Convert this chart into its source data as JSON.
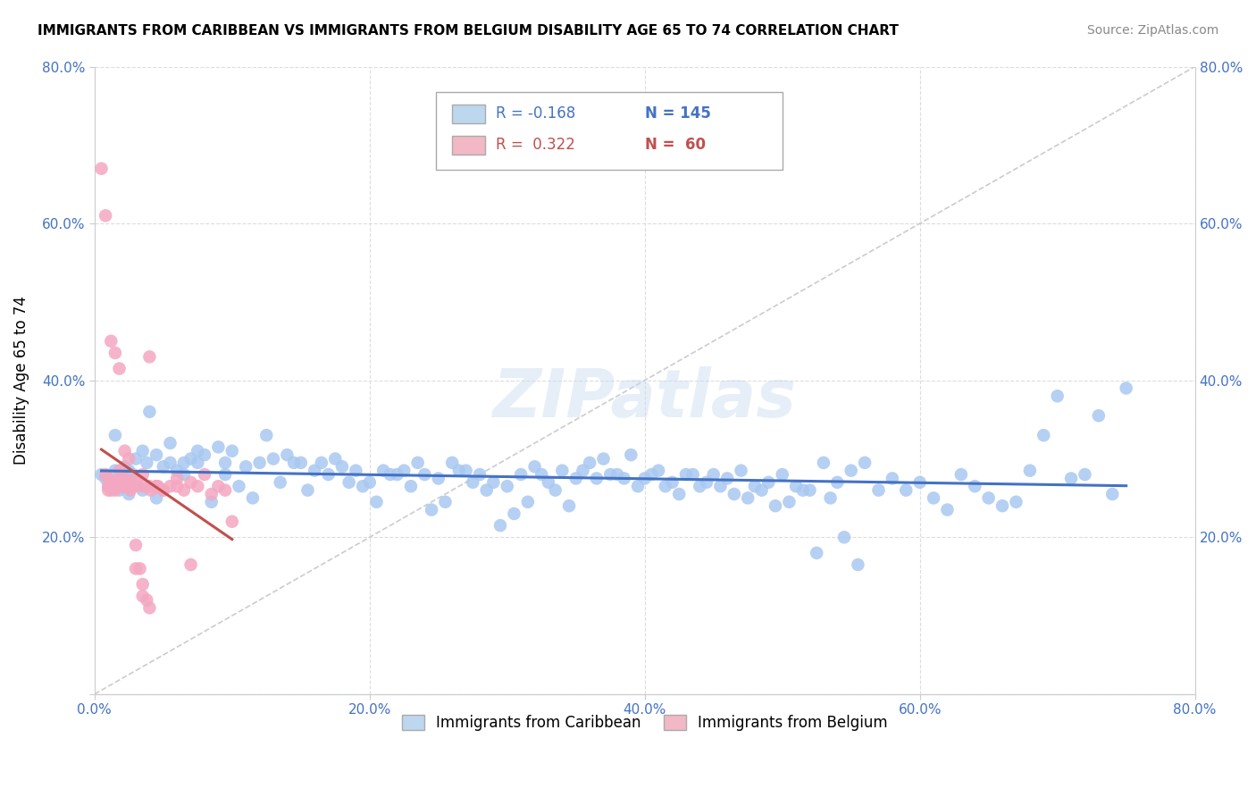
{
  "title": "IMMIGRANTS FROM CARIBBEAN VS IMMIGRANTS FROM BELGIUM DISABILITY AGE 65 TO 74 CORRELATION CHART",
  "source": "Source: ZipAtlas.com",
  "ylabel": "Disability Age 65 to 74",
  "xlim": [
    0.0,
    0.8
  ],
  "ylim": [
    0.0,
    0.8
  ],
  "x_ticks": [
    0.0,
    0.2,
    0.4,
    0.6,
    0.8
  ],
  "y_ticks": [
    0.0,
    0.2,
    0.4,
    0.6,
    0.8
  ],
  "caribbean_R": -0.168,
  "caribbean_N": 145,
  "belgium_R": 0.322,
  "belgium_N": 60,
  "caribbean_color": "#a8c8f0",
  "belgium_color": "#f4a7c0",
  "caribbean_line_color": "#4472c4",
  "belgium_line_color": "#c0504d",
  "legend_box_color_caribbean": "#bdd7ee",
  "legend_box_color_belgium": "#f2b8c6",
  "watermark": "ZIPatlas",
  "caribbean_scatter_x": [
    0.005,
    0.008,
    0.01,
    0.012,
    0.015,
    0.018,
    0.02,
    0.022,
    0.025,
    0.028,
    0.03,
    0.035,
    0.038,
    0.04,
    0.045,
    0.05,
    0.055,
    0.06,
    0.065,
    0.07,
    0.075,
    0.08,
    0.09,
    0.095,
    0.1,
    0.11,
    0.12,
    0.13,
    0.14,
    0.15,
    0.16,
    0.17,
    0.18,
    0.19,
    0.2,
    0.21,
    0.22,
    0.23,
    0.24,
    0.25,
    0.26,
    0.27,
    0.28,
    0.29,
    0.3,
    0.31,
    0.32,
    0.33,
    0.34,
    0.35,
    0.36,
    0.37,
    0.38,
    0.39,
    0.4,
    0.41,
    0.42,
    0.43,
    0.44,
    0.45,
    0.46,
    0.47,
    0.48,
    0.49,
    0.5,
    0.51,
    0.52,
    0.53,
    0.54,
    0.55,
    0.56,
    0.57,
    0.58,
    0.59,
    0.6,
    0.61,
    0.62,
    0.63,
    0.64,
    0.65,
    0.66,
    0.67,
    0.68,
    0.69,
    0.7,
    0.71,
    0.72,
    0.73,
    0.74,
    0.75,
    0.015,
    0.025,
    0.035,
    0.045,
    0.055,
    0.065,
    0.075,
    0.085,
    0.095,
    0.105,
    0.115,
    0.125,
    0.135,
    0.145,
    0.155,
    0.165,
    0.175,
    0.185,
    0.195,
    0.205,
    0.215,
    0.225,
    0.235,
    0.245,
    0.255,
    0.265,
    0.275,
    0.285,
    0.295,
    0.305,
    0.315,
    0.325,
    0.335,
    0.345,
    0.355,
    0.365,
    0.375,
    0.385,
    0.395,
    0.405,
    0.415,
    0.425,
    0.435,
    0.445,
    0.455,
    0.465,
    0.475,
    0.485,
    0.495,
    0.505,
    0.515,
    0.525,
    0.535,
    0.545,
    0.555
  ],
  "caribbean_scatter_y": [
    0.28,
    0.275,
    0.265,
    0.27,
    0.285,
    0.26,
    0.275,
    0.29,
    0.285,
    0.28,
    0.3,
    0.31,
    0.295,
    0.36,
    0.305,
    0.29,
    0.295,
    0.285,
    0.28,
    0.3,
    0.295,
    0.305,
    0.315,
    0.295,
    0.31,
    0.29,
    0.295,
    0.3,
    0.305,
    0.295,
    0.285,
    0.28,
    0.29,
    0.285,
    0.27,
    0.285,
    0.28,
    0.265,
    0.28,
    0.275,
    0.295,
    0.285,
    0.28,
    0.27,
    0.265,
    0.28,
    0.29,
    0.27,
    0.285,
    0.275,
    0.295,
    0.3,
    0.28,
    0.305,
    0.275,
    0.285,
    0.27,
    0.28,
    0.265,
    0.28,
    0.275,
    0.285,
    0.265,
    0.27,
    0.28,
    0.265,
    0.26,
    0.295,
    0.27,
    0.285,
    0.295,
    0.26,
    0.275,
    0.26,
    0.27,
    0.25,
    0.235,
    0.28,
    0.265,
    0.25,
    0.24,
    0.245,
    0.285,
    0.33,
    0.38,
    0.275,
    0.28,
    0.355,
    0.255,
    0.39,
    0.33,
    0.255,
    0.26,
    0.25,
    0.32,
    0.295,
    0.31,
    0.245,
    0.28,
    0.265,
    0.25,
    0.33,
    0.27,
    0.295,
    0.26,
    0.295,
    0.3,
    0.27,
    0.265,
    0.245,
    0.28,
    0.285,
    0.295,
    0.235,
    0.245,
    0.285,
    0.27,
    0.26,
    0.215,
    0.23,
    0.245,
    0.28,
    0.26,
    0.24,
    0.285,
    0.275,
    0.28,
    0.275,
    0.265,
    0.28,
    0.265,
    0.255,
    0.28,
    0.27,
    0.265,
    0.255,
    0.25,
    0.26,
    0.24,
    0.245,
    0.26,
    0.18,
    0.25,
    0.2,
    0.165
  ],
  "belgium_scatter_x": [
    0.005,
    0.008,
    0.01,
    0.012,
    0.015,
    0.018,
    0.02,
    0.022,
    0.025,
    0.028,
    0.03,
    0.033,
    0.035,
    0.038,
    0.04,
    0.008,
    0.012,
    0.015,
    0.018,
    0.022,
    0.025,
    0.03,
    0.035,
    0.04,
    0.045,
    0.01,
    0.015,
    0.02,
    0.025,
    0.03,
    0.035,
    0.04,
    0.045,
    0.05,
    0.055,
    0.06,
    0.065,
    0.07,
    0.075,
    0.08,
    0.085,
    0.09,
    0.095,
    0.1,
    0.01,
    0.015,
    0.02,
    0.025,
    0.012,
    0.016,
    0.019,
    0.023,
    0.026,
    0.032,
    0.036,
    0.041,
    0.046,
    0.05,
    0.06,
    0.07
  ],
  "belgium_scatter_y": [
    0.67,
    0.28,
    0.26,
    0.265,
    0.26,
    0.285,
    0.27,
    0.275,
    0.27,
    0.265,
    0.19,
    0.16,
    0.14,
    0.12,
    0.11,
    0.61,
    0.45,
    0.435,
    0.415,
    0.31,
    0.3,
    0.16,
    0.125,
    0.43,
    0.265,
    0.265,
    0.27,
    0.275,
    0.265,
    0.275,
    0.28,
    0.265,
    0.265,
    0.26,
    0.265,
    0.275,
    0.26,
    0.27,
    0.265,
    0.28,
    0.255,
    0.265,
    0.26,
    0.22,
    0.275,
    0.27,
    0.265,
    0.27,
    0.26,
    0.265,
    0.265,
    0.27,
    0.26,
    0.265,
    0.265,
    0.26,
    0.265,
    0.26,
    0.265,
    0.165
  ]
}
